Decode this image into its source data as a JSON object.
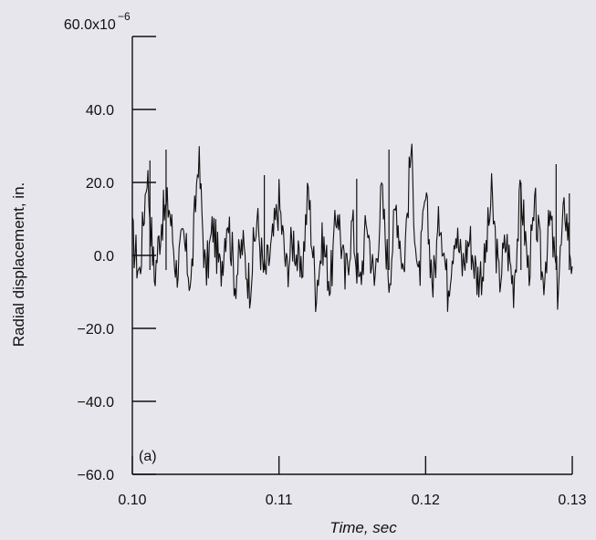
{
  "chart_data": {
    "type": "line",
    "title": "",
    "panel_label": "(a)",
    "xlabel": "Time, sec",
    "ylabel": "Radial displacement, in.",
    "y_multiplier_label": "x10",
    "y_exponent_label": "−6",
    "xlim": [
      0.1,
      0.13
    ],
    "ylim": [
      -60.0,
      60.0
    ],
    "x_ticks": [
      0.1,
      0.11,
      0.12,
      0.13
    ],
    "x_tick_labels": [
      "0.10",
      "0.11",
      "0.12",
      "0.13"
    ],
    "y_ticks": [
      60.0,
      40.0,
      20.0,
      0.0,
      -20.0,
      -40.0,
      -60.0
    ],
    "y_tick_labels": [
      "60.0",
      "40.0",
      "20.0",
      "0.0",
      "−20.0",
      "−40.0",
      "−60.0"
    ],
    "grid": false,
    "series": [
      {
        "values_x": [
          0.1,
          0.1005,
          0.101,
          0.1015,
          0.102,
          0.1025,
          0.103,
          0.1035,
          0.104,
          0.1045,
          0.105,
          0.1055,
          0.106,
          0.1065,
          0.107,
          0.1075,
          0.108,
          0.1085,
          0.109,
          0.1095,
          0.11,
          0.1105,
          0.111,
          0.1115,
          0.112,
          0.1125,
          0.113,
          0.1135,
          0.114,
          0.1145,
          0.115,
          0.1155,
          0.116,
          0.1165,
          0.117,
          0.1175,
          0.118,
          0.1185,
          0.119,
          0.1195,
          0.12,
          0.1205,
          0.121,
          0.1215,
          0.122,
          0.1225,
          0.123,
          0.1235,
          0.124,
          0.1245,
          0.125,
          0.1255,
          0.126,
          0.1265,
          0.127,
          0.1275,
          0.128,
          0.1285,
          0.129,
          0.1295,
          0.13
        ],
        "values_y": [
          5,
          -5,
          24,
          -6,
          10,
          14,
          -4,
          4,
          -8,
          28,
          -6,
          8,
          -5,
          12,
          -7,
          3,
          -8,
          10,
          -6,
          2,
          15,
          -4,
          5,
          -7,
          18,
          -9,
          4,
          -8,
          14,
          -7,
          9,
          -9,
          10,
          -8,
          17,
          -6,
          14,
          -4,
          29,
          -9,
          15,
          -8,
          12,
          -9,
          8,
          -3,
          5,
          -6,
          -3,
          16,
          -7,
          4,
          -8,
          18,
          -4,
          12,
          -7,
          10,
          -9,
          14,
          -3
        ],
        "peaks": [
          {
            "x": 0.1012,
            "y": 26
          },
          {
            "x": 0.1023,
            "y": 29
          },
          {
            "x": 0.109,
            "y": 22
          },
          {
            "x": 0.1153,
            "y": 21
          },
          {
            "x": 0.1175,
            "y": 29
          },
          {
            "x": 0.1265,
            "y": 20
          },
          {
            "x": 0.1289,
            "y": 25
          },
          {
            "x": 0.1298,
            "y": 17
          }
        ]
      }
    ]
  }
}
